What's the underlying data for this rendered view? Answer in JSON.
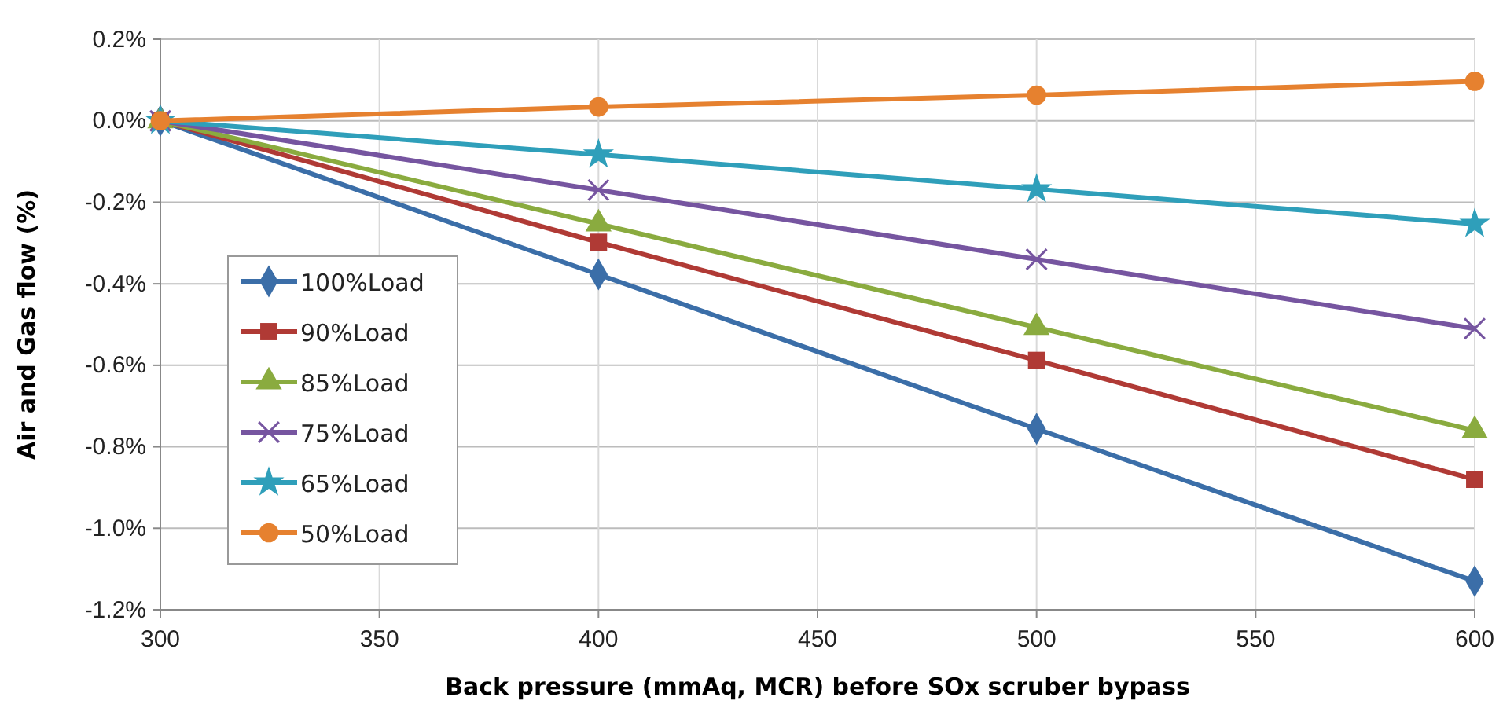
{
  "chart_data": {
    "type": "line",
    "xlabel": "Back pressure (mmAq, MCR)  before SOx scruber bypass",
    "ylabel": "Air and Gas flow (%)",
    "x": [
      300,
      400,
      500,
      600
    ],
    "xlim": [
      300,
      600
    ],
    "xticks": [
      300,
      350,
      400,
      450,
      500,
      550,
      600
    ],
    "ylim": [
      -1.2,
      0.2
    ],
    "yticks": [
      {
        "value": 0.2,
        "label": "0.2%"
      },
      {
        "value": 0,
        "label": "0.0%"
      },
      {
        "value": -0.2,
        "label": "-0.2%"
      },
      {
        "value": -0.4,
        "label": "-0.4%"
      },
      {
        "value": -0.6,
        "label": "-0.6%"
      },
      {
        "value": -0.8,
        "label": "-0.8%"
      },
      {
        "value": -1.0,
        "label": "-1.0%"
      },
      {
        "value": -1.2,
        "label": "-1.2%"
      }
    ],
    "grid": true,
    "legend": "left",
    "series": [
      {
        "name": "100%Load",
        "color": "#3b6ea8",
        "marker": "diamond",
        "values": [
          0,
          -0.377,
          -0.756,
          -1.13
        ]
      },
      {
        "name": "90%Load",
        "color": "#b03a35",
        "marker": "square",
        "values": [
          0,
          -0.298,
          -0.588,
          -0.88
        ]
      },
      {
        "name": "85%Load",
        "color": "#8aab3f",
        "marker": "triangle",
        "values": [
          0,
          -0.253,
          -0.507,
          -0.76
        ]
      },
      {
        "name": "75%Load",
        "color": "#7655a0",
        "marker": "cross",
        "values": [
          0,
          -0.17,
          -0.34,
          -0.51
        ]
      },
      {
        "name": "65%Load",
        "color": "#2f9fba",
        "marker": "star",
        "values": [
          0,
          -0.083,
          -0.168,
          -0.253
        ]
      },
      {
        "name": "50%Load",
        "color": "#e6812f",
        "marker": "circle",
        "values": [
          0,
          0.034,
          0.063,
          0.097
        ]
      }
    ]
  }
}
